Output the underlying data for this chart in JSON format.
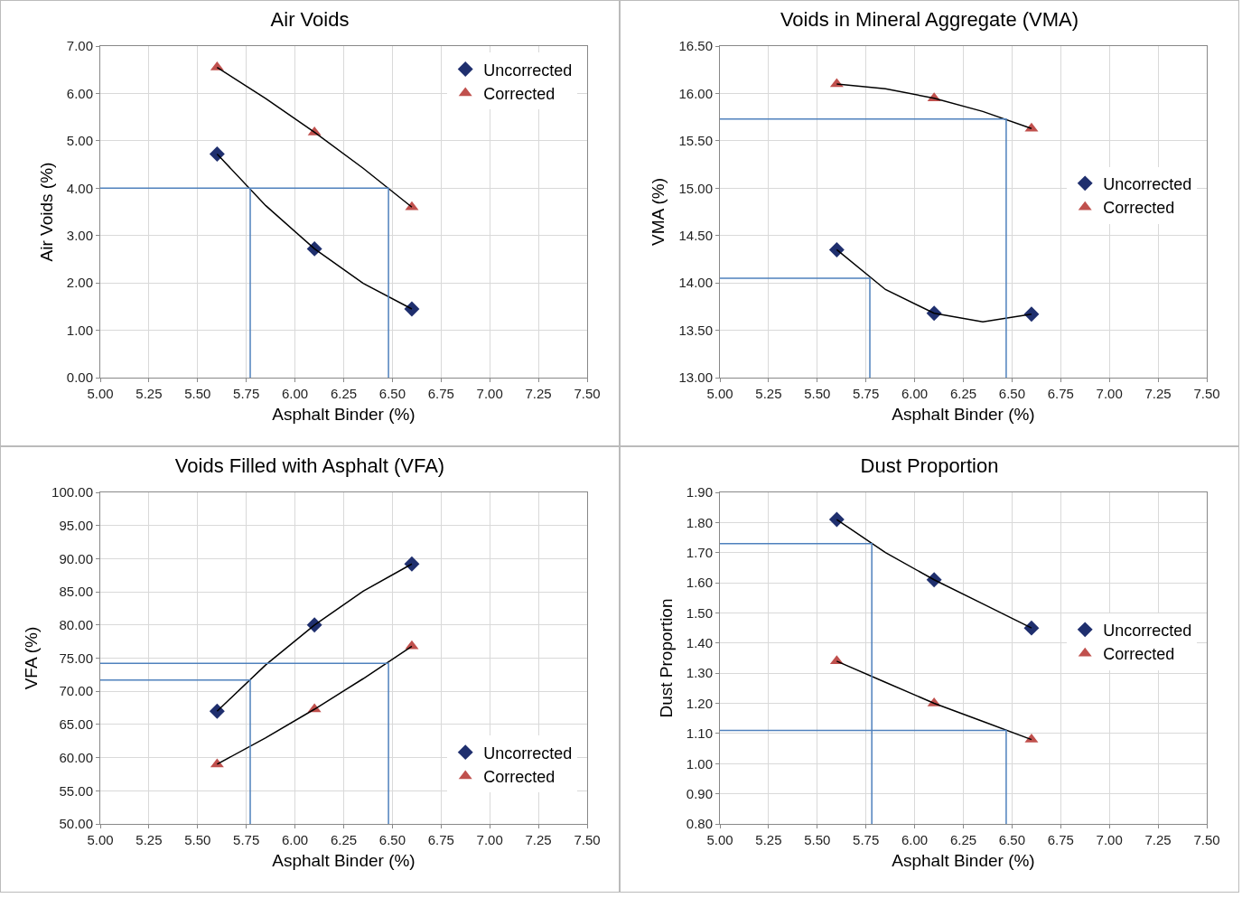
{
  "chart_data": [
    {
      "type": "scatter",
      "title": "Air Voids",
      "xlabel": "Asphalt Binder (%)",
      "ylabel": "Air Voids (%)",
      "xlim": [
        5,
        7.5
      ],
      "ylim": [
        0,
        7
      ],
      "xticks": [
        {
          "value": 5,
          "label": "5.00"
        },
        {
          "value": 5.25,
          "label": "5.25"
        },
        {
          "value": 5.5,
          "label": "5.50"
        },
        {
          "value": 5.75,
          "label": "5.75"
        },
        {
          "value": 6,
          "label": "6.00"
        },
        {
          "value": 6.25,
          "label": "6.25"
        },
        {
          "value": 6.5,
          "label": "6.50"
        },
        {
          "value": 6.75,
          "label": "6.75"
        },
        {
          "value": 7,
          "label": "7.00"
        },
        {
          "value": 7.25,
          "label": "7.25"
        },
        {
          "value": 7.5,
          "label": "7.50"
        }
      ],
      "yticks": [
        {
          "value": 0,
          "label": "0.00"
        },
        {
          "value": 1,
          "label": "1.00"
        },
        {
          "value": 2,
          "label": "2.00"
        },
        {
          "value": 3,
          "label": "3.00"
        },
        {
          "value": 4,
          "label": "4.00"
        },
        {
          "value": 5,
          "label": "5.00"
        },
        {
          "value": 6,
          "label": "6.00"
        },
        {
          "value": 7,
          "label": "7.00"
        }
      ],
      "grid": true,
      "legend": "top right",
      "series": [
        {
          "name": "Uncorrected",
          "color": "#1f2f6e",
          "marker": "diamond",
          "x": [
            5.6,
            6.1,
            6.6
          ],
          "values": [
            4.72,
            2.72,
            1.45
          ]
        },
        {
          "name": "Corrected",
          "color": "#c0504d",
          "marker": "triangle",
          "x": [
            5.6,
            6.1,
            6.6
          ],
          "values": [
            6.55,
            5.18,
            3.6
          ]
        },
        {
          "type": "line",
          "color": "#000000",
          "marker": "none",
          "x": [
            5.6,
            5.85,
            6.1,
            6.35,
            6.6
          ],
          "values": [
            4.72,
            3.63,
            2.72,
            1.99,
            1.45
          ]
        },
        {
          "type": "line",
          "color": "#000000",
          "marker": "none",
          "x": [
            5.6,
            5.85,
            6.1,
            6.35,
            6.6
          ],
          "values": [
            6.55,
            5.89,
            5.18,
            4.42,
            3.6
          ]
        },
        {
          "type": "line",
          "color": "#4f81bd",
          "marker": "none",
          "x": [
            5,
            6.48,
            6.48,
            null,
            5.77,
            5.77
          ],
          "values": [
            4,
            4,
            0,
            null,
            4,
            0
          ]
        }
      ]
    },
    {
      "type": "scatter",
      "title": "Voids in Mineral Aggregate (VMA)",
      "xlabel": "Asphalt Binder (%)",
      "ylabel": "VMA (%)",
      "xlim": [
        5,
        7.5
      ],
      "ylim": [
        13,
        16.5
      ],
      "xticks": [
        {
          "value": 5,
          "label": "5.00"
        },
        {
          "value": 5.25,
          "label": "5.25"
        },
        {
          "value": 5.5,
          "label": "5.50"
        },
        {
          "value": 5.75,
          "label": "5.75"
        },
        {
          "value": 6,
          "label": "6.00"
        },
        {
          "value": 6.25,
          "label": "6.25"
        },
        {
          "value": 6.5,
          "label": "6.50"
        },
        {
          "value": 6.75,
          "label": "6.75"
        },
        {
          "value": 7,
          "label": "7.00"
        },
        {
          "value": 7.25,
          "label": "7.25"
        },
        {
          "value": 7.5,
          "label": "7.50"
        }
      ],
      "yticks": [
        {
          "value": 13,
          "label": "13.00"
        },
        {
          "value": 13.5,
          "label": "13.50"
        },
        {
          "value": 14,
          "label": "14.00"
        },
        {
          "value": 14.5,
          "label": "14.50"
        },
        {
          "value": 15,
          "label": "15.00"
        },
        {
          "value": 15.5,
          "label": "15.50"
        },
        {
          "value": 16,
          "label": "16.00"
        },
        {
          "value": 16.5,
          "label": "16.50"
        }
      ],
      "grid": true,
      "legend": "right",
      "series": [
        {
          "name": "Uncorrected",
          "color": "#1f2f6e",
          "marker": "diamond",
          "x": [
            5.6,
            6.1,
            6.6
          ],
          "values": [
            14.35,
            13.68,
            13.67
          ]
        },
        {
          "name": "Corrected",
          "color": "#c0504d",
          "marker": "triangle",
          "x": [
            5.6,
            6.1,
            6.6
          ],
          "values": [
            16.1,
            15.95,
            15.63
          ]
        },
        {
          "type": "line",
          "color": "#000000",
          "marker": "none",
          "x": [
            5.6,
            5.85,
            6.1,
            6.35,
            6.6
          ],
          "values": [
            14.35,
            13.93,
            13.68,
            13.59,
            13.67
          ]
        },
        {
          "type": "line",
          "color": "#000000",
          "marker": "none",
          "x": [
            5.6,
            5.85,
            6.1,
            6.35,
            6.6
          ],
          "values": [
            16.1,
            16.05,
            15.95,
            15.81,
            15.63
          ]
        },
        {
          "type": "line",
          "color": "#4f81bd",
          "marker": "none",
          "x": [
            5,
            6.47,
            6.47,
            null,
            5,
            5.77,
            5.77
          ],
          "values": [
            15.73,
            15.73,
            13,
            null,
            14.05,
            14.05,
            13
          ]
        }
      ]
    },
    {
      "type": "scatter",
      "title": "Voids Filled with Asphalt (VFA)",
      "xlabel": "Asphalt Binder (%)",
      "ylabel": "VFA (%)",
      "xlim": [
        5,
        7.5
      ],
      "ylim": [
        50,
        100
      ],
      "xticks": [
        {
          "value": 5,
          "label": "5.00"
        },
        {
          "value": 5.25,
          "label": "5.25"
        },
        {
          "value": 5.5,
          "label": "5.50"
        },
        {
          "value": 5.75,
          "label": "5.75"
        },
        {
          "value": 6,
          "label": "6.00"
        },
        {
          "value": 6.25,
          "label": "6.25"
        },
        {
          "value": 6.5,
          "label": "6.50"
        },
        {
          "value": 6.75,
          "label": "6.75"
        },
        {
          "value": 7,
          "label": "7.00"
        },
        {
          "value": 7.25,
          "label": "7.25"
        },
        {
          "value": 7.5,
          "label": "7.50"
        }
      ],
      "yticks": [
        {
          "value": 50,
          "label": "50.00"
        },
        {
          "value": 55,
          "label": "55.00"
        },
        {
          "value": 60,
          "label": "60.00"
        },
        {
          "value": 65,
          "label": "65.00"
        },
        {
          "value": 70,
          "label": "70.00"
        },
        {
          "value": 75,
          "label": "75.00"
        },
        {
          "value": 80,
          "label": "80.00"
        },
        {
          "value": 85,
          "label": "85.00"
        },
        {
          "value": 90,
          "label": "90.00"
        },
        {
          "value": 95,
          "label": "95.00"
        },
        {
          "value": 100,
          "label": "100.00"
        }
      ],
      "grid": true,
      "legend": "bottom right",
      "series": [
        {
          "name": "Uncorrected",
          "color": "#1f2f6e",
          "marker": "diamond",
          "x": [
            5.6,
            6.1,
            6.6
          ],
          "values": [
            67,
            80,
            89.2
          ]
        },
        {
          "name": "Corrected",
          "color": "#c0504d",
          "marker": "triangle",
          "x": [
            5.6,
            6.1,
            6.6
          ],
          "values": [
            59,
            67.3,
            76.8
          ]
        },
        {
          "type": "line",
          "color": "#000000",
          "marker": "none",
          "x": [
            5.6,
            5.85,
            6.1,
            6.35,
            6.6
          ],
          "values": [
            67,
            74,
            80,
            85.1,
            89.2
          ]
        },
        {
          "type": "line",
          "color": "#000000",
          "marker": "none",
          "x": [
            5.6,
            5.85,
            6.1,
            6.35,
            6.6
          ],
          "values": [
            59,
            63,
            67.3,
            71.9,
            76.8
          ]
        },
        {
          "type": "line",
          "color": "#4f81bd",
          "marker": "none",
          "x": [
            5,
            6.48,
            6.48,
            null,
            5,
            5.77,
            5.77
          ],
          "values": [
            74.2,
            74.2,
            50,
            null,
            71.7,
            71.7,
            50
          ]
        }
      ]
    },
    {
      "type": "scatter",
      "title": "Dust Proportion",
      "xlabel": "Asphalt Binder (%)",
      "ylabel": "Dust Proportion",
      "xlim": [
        5,
        7.5
      ],
      "ylim": [
        0.8,
        1.9
      ],
      "xticks": [
        {
          "value": 5,
          "label": "5.00"
        },
        {
          "value": 5.25,
          "label": "5.25"
        },
        {
          "value": 5.5,
          "label": "5.50"
        },
        {
          "value": 5.75,
          "label": "5.75"
        },
        {
          "value": 6,
          "label": "6.00"
        },
        {
          "value": 6.25,
          "label": "6.25"
        },
        {
          "value": 6.5,
          "label": "6.50"
        },
        {
          "value": 6.75,
          "label": "6.75"
        },
        {
          "value": 7,
          "label": "7.00"
        },
        {
          "value": 7.25,
          "label": "7.25"
        },
        {
          "value": 7.5,
          "label": "7.50"
        }
      ],
      "yticks": [
        {
          "value": 0.8,
          "label": "0.80"
        },
        {
          "value": 0.9,
          "label": "0.90"
        },
        {
          "value": 1,
          "label": "1.00"
        },
        {
          "value": 1.1,
          "label": "1.10"
        },
        {
          "value": 1.2,
          "label": "1.20"
        },
        {
          "value": 1.3,
          "label": "1.30"
        },
        {
          "value": 1.4,
          "label": "1.40"
        },
        {
          "value": 1.5,
          "label": "1.50"
        },
        {
          "value": 1.6,
          "label": "1.60"
        },
        {
          "value": 1.7,
          "label": "1.70"
        },
        {
          "value": 1.8,
          "label": "1.80"
        },
        {
          "value": 1.9,
          "label": "1.90"
        }
      ],
      "grid": true,
      "legend": "right",
      "series": [
        {
          "name": "Uncorrected",
          "color": "#1f2f6e",
          "marker": "diamond",
          "x": [
            5.6,
            6.1,
            6.6
          ],
          "values": [
            1.81,
            1.61,
            1.45
          ]
        },
        {
          "name": "Corrected",
          "color": "#c0504d",
          "marker": "triangle",
          "x": [
            5.6,
            6.1,
            6.6
          ],
          "values": [
            1.34,
            1.2,
            1.08
          ]
        },
        {
          "type": "line",
          "color": "#000000",
          "marker": "none",
          "x": [
            5.6,
            5.85,
            6.1,
            6.35,
            6.6
          ],
          "values": [
            1.81,
            1.7,
            1.61,
            1.53,
            1.45
          ]
        },
        {
          "type": "line",
          "color": "#000000",
          "marker": "none",
          "x": [
            5.6,
            5.85,
            6.1,
            6.35,
            6.6
          ],
          "values": [
            1.34,
            1.27,
            1.2,
            1.14,
            1.08
          ]
        },
        {
          "type": "line",
          "color": "#4f81bd",
          "marker": "none",
          "x": [
            5,
            5.78,
            5.78,
            null,
            5,
            6.47,
            6.47
          ],
          "values": [
            1.73,
            1.73,
            0.8,
            null,
            1.11,
            1.11,
            0.8
          ]
        }
      ]
    }
  ]
}
